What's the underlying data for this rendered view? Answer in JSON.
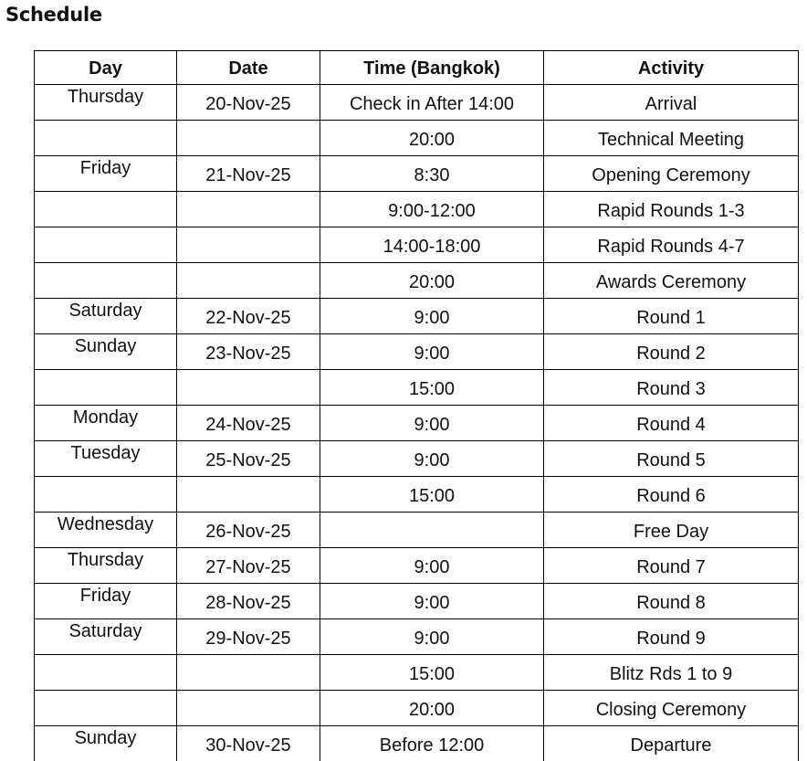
{
  "title": "Schedule",
  "columns": [
    "Day",
    "Date",
    "Time (Bangkok)",
    "Activity"
  ],
  "rows": [
    [
      "Thursday",
      "20-Nov-25",
      "Check in After 14:00",
      "Arrival"
    ],
    [
      "",
      "",
      "20:00",
      "Technical Meeting"
    ],
    [
      "Friday",
      "21-Nov-25",
      "8:30",
      "Opening Ceremony"
    ],
    [
      "",
      "",
      "9:00-12:00",
      "Rapid Rounds 1-3"
    ],
    [
      "",
      "",
      "14:00-18:00",
      "Rapid Rounds 4-7"
    ],
    [
      "",
      "",
      "20:00",
      "Awards Ceremony"
    ],
    [
      "Saturday",
      "22-Nov-25",
      "9:00",
      "Round 1"
    ],
    [
      "Sunday",
      "23-Nov-25",
      "9:00",
      "Round 2"
    ],
    [
      "",
      "",
      "15:00",
      "Round 3"
    ],
    [
      "Monday",
      "24-Nov-25",
      "9:00",
      "Round 4"
    ],
    [
      "Tuesday",
      "25-Nov-25",
      "9:00",
      "Round 5"
    ],
    [
      "",
      "",
      "15:00",
      "Round 6"
    ],
    [
      "Wednesday",
      "26-Nov-25",
      "",
      "Free Day"
    ],
    [
      "Thursday",
      "27-Nov-25",
      "9:00",
      "Round 7"
    ],
    [
      "Friday",
      "28-Nov-25",
      "9:00",
      "Round 8"
    ],
    [
      "Saturday",
      "29-Nov-25",
      "9:00",
      "Round 9"
    ],
    [
      "",
      "",
      "15:00",
      "Blitz Rds 1 to 9"
    ],
    [
      "",
      "",
      "20:00",
      "Closing Ceremony"
    ],
    [
      "Sunday",
      "30-Nov-25",
      "Before 12:00",
      "Departure"
    ]
  ]
}
